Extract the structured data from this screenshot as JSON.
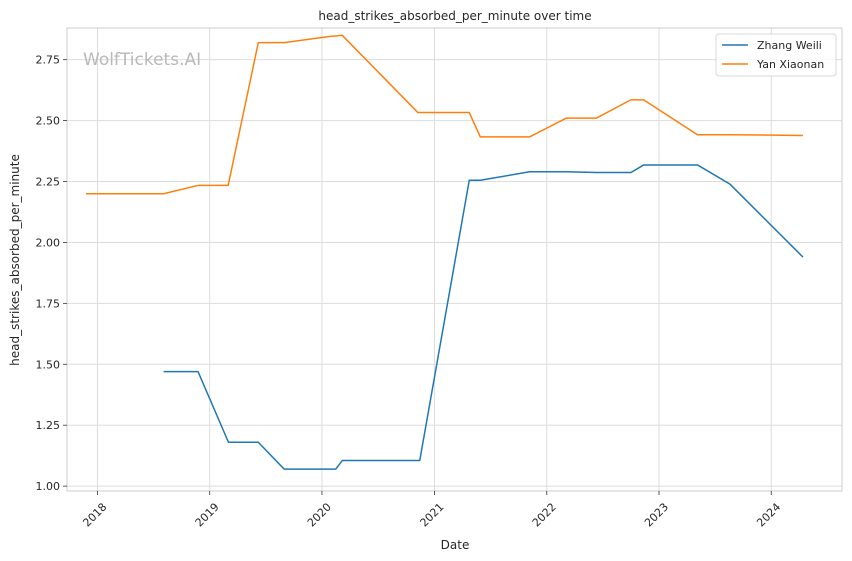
{
  "chart_data": {
    "type": "line",
    "title": "head_strikes_absorbed_per_minute over time",
    "xlabel": "Date",
    "ylabel": "head_strikes_absorbed_per_minute",
    "watermark": "WolfTickets.AI",
    "xlim": [
      "2017-09-24",
      "2024-08-18"
    ],
    "ylim": [
      0.98,
      2.88
    ],
    "x_ticks": [
      "2018-01-01",
      "2019-01-01",
      "2020-01-01",
      "2021-01-01",
      "2022-01-01",
      "2023-01-01",
      "2024-01-01"
    ],
    "x_tick_labels": [
      "2018",
      "2019",
      "2020",
      "2021",
      "2022",
      "2023",
      "2024"
    ],
    "y_ticks": [
      1.0,
      1.25,
      1.5,
      1.75,
      2.0,
      2.25,
      2.5,
      2.75
    ],
    "y_tick_labels": [
      "1.00",
      "1.25",
      "1.50",
      "1.75",
      "2.00",
      "2.25",
      "2.50",
      "2.75"
    ],
    "grid": true,
    "legend_position": "top-right",
    "series": [
      {
        "name": "Zhang Weili",
        "color": "#1f77b4",
        "points": [
          {
            "x": "2018-08-04",
            "y": 1.47
          },
          {
            "x": "2018-11-24",
            "y": 1.47
          },
          {
            "x": "2019-03-03",
            "y": 1.18
          },
          {
            "x": "2019-06-08",
            "y": 1.18
          },
          {
            "x": "2019-08-31",
            "y": 1.07
          },
          {
            "x": "2020-02-15",
            "y": 1.07
          },
          {
            "x": "2020-03-07",
            "y": 1.105
          },
          {
            "x": "2020-11-14",
            "y": 1.105
          },
          {
            "x": "2021-04-24",
            "y": 2.255
          },
          {
            "x": "2021-05-30",
            "y": 2.255
          },
          {
            "x": "2021-11-06",
            "y": 2.29
          },
          {
            "x": "2022-03-05",
            "y": 2.29
          },
          {
            "x": "2022-06-11",
            "y": 2.287
          },
          {
            "x": "2022-10-02",
            "y": 2.287
          },
          {
            "x": "2022-11-12",
            "y": 2.318
          },
          {
            "x": "2023-05-06",
            "y": 2.318
          },
          {
            "x": "2023-08-19",
            "y": 2.24
          },
          {
            "x": "2024-04-13",
            "y": 1.94
          }
        ]
      },
      {
        "name": "Yan Xiaonan",
        "color": "#ff7f0e",
        "points": [
          {
            "x": "2017-11-25",
            "y": 2.2
          },
          {
            "x": "2018-08-04",
            "y": 2.2
          },
          {
            "x": "2018-11-24",
            "y": 2.234
          },
          {
            "x": "2019-03-02",
            "y": 2.234
          },
          {
            "x": "2019-06-08",
            "y": 2.82
          },
          {
            "x": "2019-08-31",
            "y": 2.82
          },
          {
            "x": "2020-01-25",
            "y": 2.845
          },
          {
            "x": "2020-03-07",
            "y": 2.85
          },
          {
            "x": "2020-11-08",
            "y": 2.533
          },
          {
            "x": "2021-04-24",
            "y": 2.533
          },
          {
            "x": "2021-05-30",
            "y": 2.433
          },
          {
            "x": "2021-11-06",
            "y": 2.433
          },
          {
            "x": "2022-03-05",
            "y": 2.51
          },
          {
            "x": "2022-06-11",
            "y": 2.51
          },
          {
            "x": "2022-10-01",
            "y": 2.585
          },
          {
            "x": "2022-11-12",
            "y": 2.585
          },
          {
            "x": "2023-05-06",
            "y": 2.442
          },
          {
            "x": "2023-08-19",
            "y": 2.442
          },
          {
            "x": "2024-04-13",
            "y": 2.439
          }
        ]
      }
    ]
  }
}
